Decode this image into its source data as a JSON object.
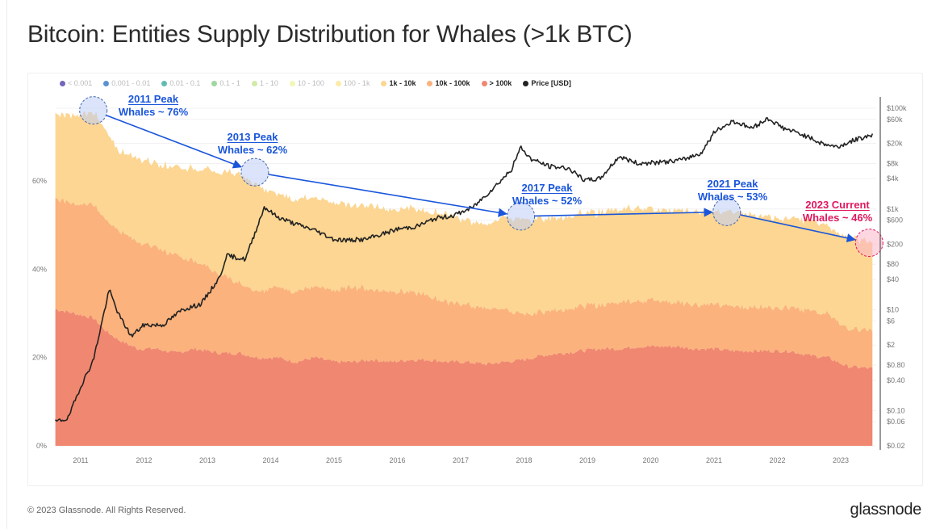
{
  "header": {
    "title": "Bitcoin: Entities Supply Distribution for Whales (>1k BTC)"
  },
  "footer": {
    "copyright": "© 2023 Glassnode. All Rights Reserved.",
    "logo": "glassnode"
  },
  "watermark": "glassnode",
  "legend": [
    {
      "label": "< 0.001",
      "color": "#5b4bb0",
      "active": false
    },
    {
      "label": "0.001 - 0.01",
      "color": "#3f7fc9",
      "active": false
    },
    {
      "label": "0.01 - 0.1",
      "color": "#44b0a3",
      "active": false
    },
    {
      "label": "0.1 - 1",
      "color": "#8fd08e",
      "active": false
    },
    {
      "label": "1 - 10",
      "color": "#c8e89a",
      "active": false
    },
    {
      "label": "10 - 100",
      "color": "#eef6a8",
      "active": false
    },
    {
      "label": "100 - 1k",
      "color": "#fbe79a",
      "active": false
    },
    {
      "label": "1k - 10k",
      "color": "#fcd692",
      "active": true
    },
    {
      "label": "10k - 100k",
      "color": "#fbb27c",
      "active": true
    },
    {
      "label": "> 100k",
      "color": "#f08770",
      "active": true
    },
    {
      "label": "Price [USD]",
      "color": "#222222",
      "active": true
    }
  ],
  "annotations": [
    {
      "id": "peak-2011",
      "line1": "2011 Peak",
      "line2": "Whales ~ 76%",
      "year": 2011.2,
      "value": 76,
      "color": "#1a56db"
    },
    {
      "id": "peak-2013",
      "line1": "2013 Peak",
      "line2": "Whales ~ 62%",
      "year": 2013.75,
      "value": 62,
      "color": "#1a56db"
    },
    {
      "id": "peak-2017",
      "line1": "2017 Peak",
      "line2": "Whales ~ 52%",
      "year": 2017.95,
      "value": 52,
      "color": "#1a56db"
    },
    {
      "id": "peak-2021",
      "line1": "2021 Peak",
      "line2": "Whales ~ 53%",
      "year": 2021.2,
      "value": 53,
      "color": "#1a56db"
    },
    {
      "id": "current-2023",
      "line1": "2023 Current",
      "line2": "Whales ~ 46%",
      "year": 2023.45,
      "value": 46,
      "color": "#e0185e"
    }
  ],
  "chart_data": {
    "type": "area",
    "title": "Bitcoin: Entities Supply Distribution for Whales (>1k BTC)",
    "stacked": true,
    "x_ticks": [
      "2011",
      "2012",
      "2013",
      "2014",
      "2015",
      "2016",
      "2017",
      "2018",
      "2019",
      "2020",
      "2021",
      "2022",
      "2023"
    ],
    "x_range": [
      2010.6,
      2023.55
    ],
    "y_left": {
      "ticks": [
        "0%",
        "20%",
        "40%",
        "60%"
      ],
      "tick_values": [
        0,
        20,
        40,
        60
      ],
      "range": [
        0,
        79
      ],
      "unit": "%"
    },
    "y_right": {
      "scale": "log",
      "ticks": [
        "$100k",
        "$60k",
        "$20k",
        "$8k",
        "$4k",
        "$1k",
        "$600",
        "$200",
        "$80",
        "$40",
        "$10",
        "$6",
        "$2",
        "$0.80",
        "$0.40",
        "$0.10",
        "$0.06",
        "$0.02"
      ],
      "tick_values": [
        100000,
        60000,
        20000,
        8000,
        4000,
        1000,
        600,
        200,
        80,
        40,
        10,
        6,
        2,
        0.8,
        0.4,
        0.1,
        0.06,
        0.02
      ],
      "range": [
        0.02,
        100000
      ]
    },
    "grid": true,
    "legend_position": "top-left",
    "x": [
      2010.6,
      2010.9,
      2011.2,
      2011.4,
      2011.6,
      2011.9,
      2012.2,
      2012.5,
      2012.8,
      2013.2,
      2013.5,
      2013.8,
      2014.1,
      2014.4,
      2014.7,
      2015.0,
      2015.3,
      2015.6,
      2015.9,
      2016.2,
      2016.5,
      2016.8,
      2017.1,
      2017.4,
      2017.7,
      2018.0,
      2018.3,
      2018.6,
      2018.9,
      2019.2,
      2019.5,
      2019.8,
      2020.1,
      2020.4,
      2020.7,
      2021.0,
      2021.3,
      2021.6,
      2021.9,
      2022.2,
      2022.5,
      2022.8,
      2023.1,
      2023.5
    ],
    "series": [
      {
        "name": "> 100k",
        "color": "#f08770",
        "values": [
          31,
          30,
          29,
          26,
          24,
          22,
          22,
          21,
          22,
          21,
          21,
          20,
          20,
          19,
          20,
          19,
          19,
          19.5,
          19,
          19.5,
          19.5,
          19,
          19,
          18.5,
          19,
          19.5,
          20.5,
          21,
          21.5,
          22,
          22,
          22.5,
          22.5,
          22.5,
          22,
          22,
          21.5,
          21.5,
          21.5,
          21.5,
          20.5,
          20,
          18,
          17.5
        ]
      },
      {
        "name": "10k - 100k",
        "color": "#fbb27c",
        "values": [
          25,
          25,
          26,
          25,
          25,
          24,
          23,
          22,
          20,
          18,
          16,
          15,
          16,
          16,
          16,
          16,
          17,
          16,
          16,
          15.5,
          14.5,
          13.5,
          13,
          12.5,
          12,
          10,
          10,
          10,
          10,
          10,
          10.5,
          10.5,
          10.5,
          10,
          10,
          10,
          10,
          10,
          10,
          10,
          10,
          10,
          8.5,
          8.5
        ]
      },
      {
        "name": "1k - 10k",
        "color": "#fcd692",
        "values": [
          19,
          20,
          21,
          20,
          18,
          19,
          19,
          20,
          21,
          23,
          25,
          24,
          21,
          21,
          20,
          20,
          18.5,
          19,
          18.5,
          19,
          19,
          20,
          19,
          19,
          21,
          21.5,
          21,
          21,
          21,
          21,
          21,
          21,
          20.5,
          21,
          21,
          21,
          21.5,
          21,
          20.5,
          20,
          20.5,
          20,
          20.5,
          20
        ]
      }
    ],
    "price_series": {
      "name": "Price [USD]",
      "color": "#222222",
      "x": [
        2010.6,
        2010.8,
        2011.0,
        2011.2,
        2011.45,
        2011.6,
        2011.8,
        2012.0,
        2012.3,
        2012.6,
        2012.9,
        2013.2,
        2013.3,
        2013.6,
        2013.9,
        2014.1,
        2014.4,
        2014.7,
        2015.0,
        2015.2,
        2015.5,
        2015.8,
        2016.0,
        2016.3,
        2016.6,
        2016.9,
        2017.2,
        2017.5,
        2017.8,
        2017.95,
        2018.1,
        2018.4,
        2018.7,
        2018.95,
        2019.2,
        2019.5,
        2019.8,
        2020.2,
        2020.5,
        2020.8,
        2021.0,
        2021.3,
        2021.6,
        2021.85,
        2022.1,
        2022.4,
        2022.7,
        2022.95,
        2023.2,
        2023.5
      ],
      "values": [
        0.06,
        0.07,
        0.3,
        1.0,
        25,
        8,
        3,
        5,
        5,
        10,
        13,
        45,
        120,
        100,
        1100,
        700,
        500,
        380,
        250,
        240,
        250,
        330,
        400,
        450,
        650,
        750,
        1100,
        2500,
        6000,
        17000,
        10000,
        7000,
        6500,
        3700,
        4000,
        11000,
        8000,
        8500,
        9500,
        13000,
        33000,
        56000,
        40000,
        63000,
        40000,
        30000,
        20000,
        17000,
        23000,
        30000
      ]
    }
  }
}
